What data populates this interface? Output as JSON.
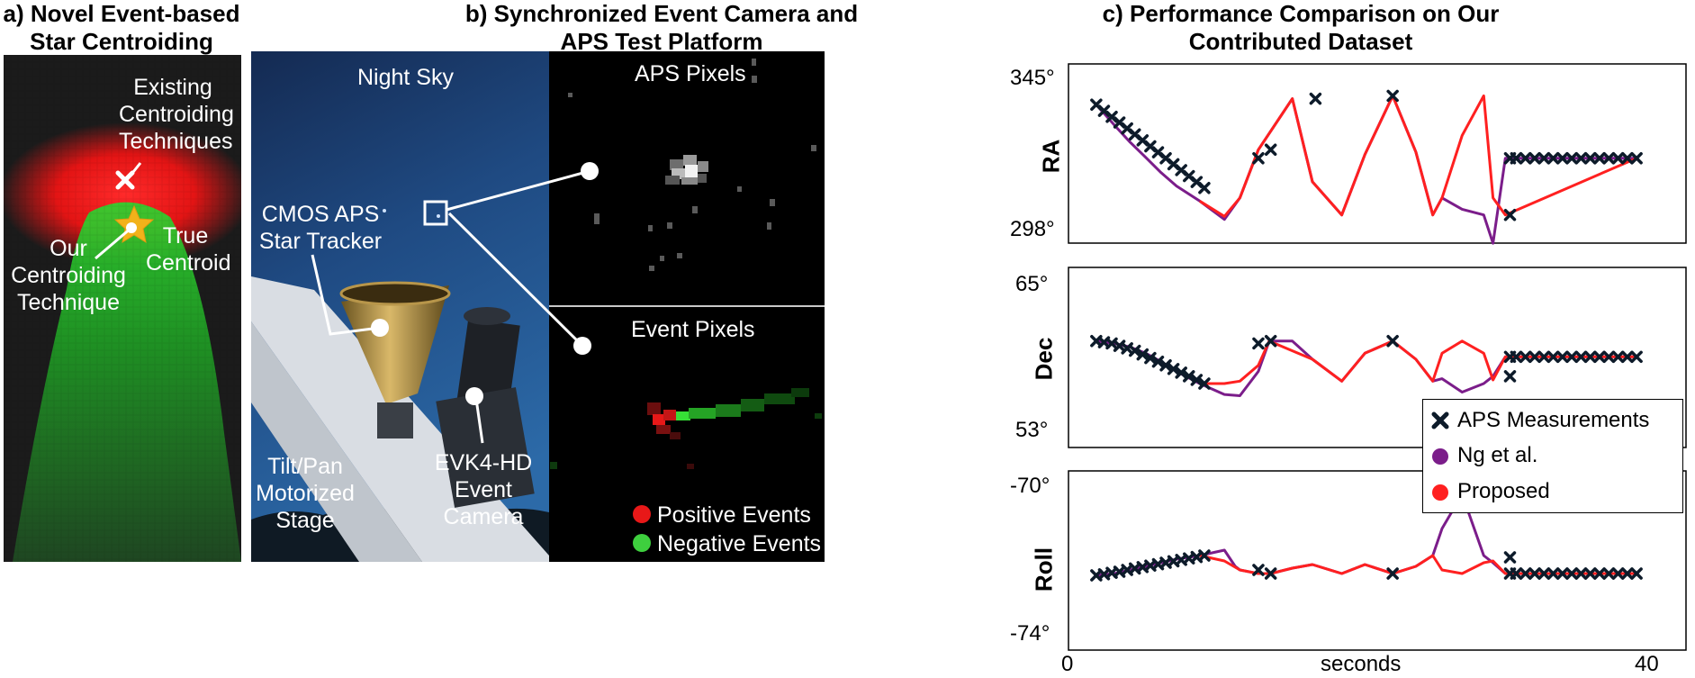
{
  "panel_a": {
    "title_line1": "a) Novel Event-based",
    "title_line2": "Star Centroiding",
    "existing_line1": "Existing",
    "existing_line2": "Centroiding",
    "existing_line3": "Techniques",
    "true_line1": "True",
    "true_line2": "Centroid",
    "ours_line1": "Our",
    "ours_line2": "Centroiding",
    "ours_line3": "Technique",
    "colors": {
      "background": "#1c1c1c",
      "positive": "#ff1e1e",
      "negative": "#2ecc2e",
      "star": "#f2b21a"
    }
  },
  "panel_b": {
    "title_line1": "b) Synchronized Event Camera and",
    "title_line2": "APS Test Platform",
    "night_sky": "Night Sky",
    "cmos_line1": "CMOS APS",
    "cmos_line2": "Star Tracker",
    "tilt_line1": "Tilt/Pan",
    "tilt_line2": "Motorized",
    "tilt_line3": "Stage",
    "evk_line1": "EVK4-HD",
    "evk_line2": "Event",
    "evk_line3": "Camera",
    "aps_pixels": "APS Pixels",
    "event_pixels": "Event Pixels",
    "legend_positive": "Positive Events",
    "legend_negative": "Negative Events"
  },
  "panel_c": {
    "title_line1": "c) Performance Comparison on Our",
    "title_line2": "Contributed Dataset",
    "x_tick_min": "0",
    "x_tick_max": "40",
    "x_label": "seconds",
    "legend": {
      "aps": "APS Measurements",
      "ng": "Ng et al.",
      "proposed": "Proposed"
    },
    "colors": {
      "ng": "#7b1d8a",
      "proposed": "#ff2020",
      "aps": "#0d1b2a"
    }
  },
  "chart_data": [
    {
      "type": "line",
      "ylabel": "RA",
      "ytick_top": "345°",
      "ytick_bottom": "298°",
      "ylim": [
        298,
        345
      ],
      "xlim": [
        0,
        40
      ],
      "series": [
        {
          "name": "Ng et al.",
          "x": [
            1.8,
            3,
            4,
            5,
            6,
            7,
            8.5,
            10.1,
            11.1,
            12.3,
            14.5,
            15.8,
            17.7,
            19.2,
            21,
            22.5,
            23.6,
            24.2,
            25.5,
            26.9,
            27.5,
            28.3,
            36.8
          ],
          "y": [
            338.9,
            331.5,
            325.6,
            320.3,
            314.9,
            310.2,
            304.9,
            298.4,
            306,
            323,
            341,
            311.7,
            300,
            321.3,
            342,
            322.2,
            300,
            306,
            302,
            300,
            290,
            320,
            320
          ]
        },
        {
          "name": "Proposed",
          "x": [
            8.5,
            10.1,
            11.1,
            12.3,
            14.5,
            15.8,
            17.7,
            19.2,
            21,
            22.5,
            23.6,
            24.2,
            25.5,
            26.9,
            27.5,
            28.3,
            36.8
          ],
          "y": [
            304.9,
            299.5,
            306,
            323,
            341,
            311.7,
            300,
            321.3,
            342,
            322.2,
            300,
            306,
            328,
            342,
            306,
            300,
            320
          ]
        },
        {
          "name": "APS Measurements",
          "x": [
            1.8,
            2.3,
            2.8,
            3.3,
            3.8,
            4.3,
            4.8,
            5.3,
            5.8,
            6.3,
            6.8,
            7.3,
            7.8,
            8.3,
            8.8,
            12.3,
            13.1,
            16,
            21,
            28.6,
            28.6,
            29,
            29.6,
            30.2,
            30.8,
            31.4,
            32,
            32.6,
            33.2,
            33.8,
            34.4,
            35,
            35.6,
            36.2,
            36.8
          ],
          "y": [
            338.9,
            336.7,
            334.6,
            332.6,
            330.5,
            328.4,
            326.3,
            324.2,
            322.1,
            320,
            317.9,
            315.8,
            313.7,
            311.6,
            309.5,
            320,
            323,
            341,
            342,
            300,
            320,
            320,
            320,
            320,
            320,
            320,
            320,
            320,
            320,
            320,
            320,
            320,
            320,
            320,
            320
          ]
        }
      ]
    },
    {
      "type": "line",
      "ylabel": "Dec",
      "ytick_top": "65°",
      "ytick_bottom": "53°",
      "ylim": [
        53,
        65
      ],
      "xlim": [
        0,
        40
      ],
      "series": [
        {
          "name": "Ng et al.",
          "x": [
            1.8,
            3,
            4,
            5,
            6,
            7,
            8.5,
            10.1,
            11.1,
            12.3,
            13,
            14.5,
            15.8,
            17.7,
            19.2,
            21,
            22.5,
            23.6,
            24.2,
            25.5,
            26.9,
            27.5,
            28.3,
            36.8
          ],
          "y": [
            60.5,
            60.3,
            60,
            59.5,
            58.8,
            58,
            57,
            56.1,
            56,
            58,
            60.5,
            60.5,
            59,
            57.2,
            59.5,
            60.5,
            59,
            57.2,
            57.4,
            56.3,
            57,
            57.6,
            59.2,
            59.2
          ]
        },
        {
          "name": "Proposed",
          "x": [
            8.5,
            10.1,
            11.1,
            12.3,
            13,
            15.8,
            17.7,
            19.2,
            21,
            22.5,
            23.6,
            24.2,
            25.5,
            26.9,
            27.5,
            28.3,
            36.8
          ],
          "y": [
            57,
            57,
            57.2,
            58.5,
            60.5,
            59,
            57.2,
            59.5,
            60.5,
            59,
            57.2,
            59.5,
            60.5,
            59.5,
            57.3,
            59.2,
            59.2
          ]
        },
        {
          "name": "APS Measurements",
          "x": [
            1.8,
            2.3,
            2.8,
            3.3,
            3.8,
            4.3,
            4.8,
            5.3,
            5.8,
            6.3,
            6.8,
            7.3,
            7.8,
            8.3,
            8.8,
            12.3,
            13.1,
            21,
            28.6,
            28.6,
            29,
            29.6,
            30.2,
            30.8,
            31.4,
            32,
            32.6,
            33.2,
            33.8,
            34.4,
            35,
            35.6,
            36.2,
            36.8
          ],
          "y": [
            60.5,
            60.4,
            60.3,
            60.1,
            59.9,
            59.7,
            59.4,
            59.1,
            58.8,
            58.5,
            58.2,
            57.9,
            57.6,
            57.3,
            57,
            60.3,
            60.5,
            60.5,
            57.6,
            59.2,
            59.2,
            59.2,
            59.2,
            59.2,
            59.2,
            59.2,
            59.2,
            59.2,
            59.2,
            59.2,
            59.2,
            59.2,
            59.2,
            59.2
          ]
        }
      ]
    },
    {
      "type": "line",
      "ylabel": "Roll",
      "ytick_top": "-70°",
      "ytick_bottom": "-74°",
      "ylim": [
        -74,
        -70
      ],
      "xlim": [
        0,
        40
      ],
      "series": [
        {
          "name": "Ng et al.",
          "x": [
            1.8,
            3,
            4,
            5,
            6,
            7,
            8.5,
            10.1,
            10.8,
            11.1,
            12.3,
            13.1,
            14.5,
            15.8,
            17.7,
            19.2,
            21,
            22.5,
            23.6,
            24.2,
            25.5,
            26.9,
            27.5,
            28.3,
            36.8
          ],
          "y": [
            -72.35,
            -72.3,
            -72.2,
            -72.1,
            -72,
            -71.9,
            -71.8,
            -71.65,
            -72.1,
            -72.2,
            -72.3,
            -72.3,
            -72.15,
            -72.05,
            -72.3,
            -72.05,
            -72.3,
            -72.1,
            -71.8,
            -71.05,
            -70.1,
            -71.8,
            -72,
            -72.3,
            -72.3
          ]
        },
        {
          "name": "Proposed",
          "x": [
            8.5,
            10.1,
            11.1,
            12.3,
            13.1,
            14.5,
            15.8,
            17.7,
            19.2,
            21,
            22.5,
            23.6,
            24.2,
            25.5,
            26.9,
            27.5,
            28.3,
            36.8
          ],
          "y": [
            -71.8,
            -71.95,
            -72.2,
            -72.3,
            -72.3,
            -72.15,
            -72.05,
            -72.3,
            -72.05,
            -72.3,
            -72.1,
            -71.8,
            -72.2,
            -72.3,
            -72,
            -71.95,
            -72.3,
            -72.3
          ]
        },
        {
          "name": "APS Measurements",
          "x": [
            1.8,
            2.3,
            2.8,
            3.3,
            3.8,
            4.3,
            4.8,
            5.3,
            5.8,
            6.3,
            6.8,
            7.3,
            7.8,
            8.3,
            8.8,
            12.3,
            13.1,
            21,
            28.6,
            28.6,
            29,
            29.6,
            30.2,
            30.8,
            31.4,
            32,
            32.6,
            33.2,
            33.8,
            34.4,
            35,
            35.6,
            36.2,
            36.8
          ],
          "y": [
            -72.35,
            -72.32,
            -72.28,
            -72.25,
            -72.2,
            -72.16,
            -72.12,
            -72.08,
            -72.04,
            -72,
            -71.96,
            -71.92,
            -71.88,
            -71.84,
            -71.8,
            -72.2,
            -72.3,
            -72.3,
            -71.85,
            -72.3,
            -72.3,
            -72.3,
            -72.3,
            -72.3,
            -72.3,
            -72.3,
            -72.3,
            -72.3,
            -72.3,
            -72.3,
            -72.3,
            -72.3,
            -72.3,
            -72.3
          ]
        }
      ]
    }
  ]
}
